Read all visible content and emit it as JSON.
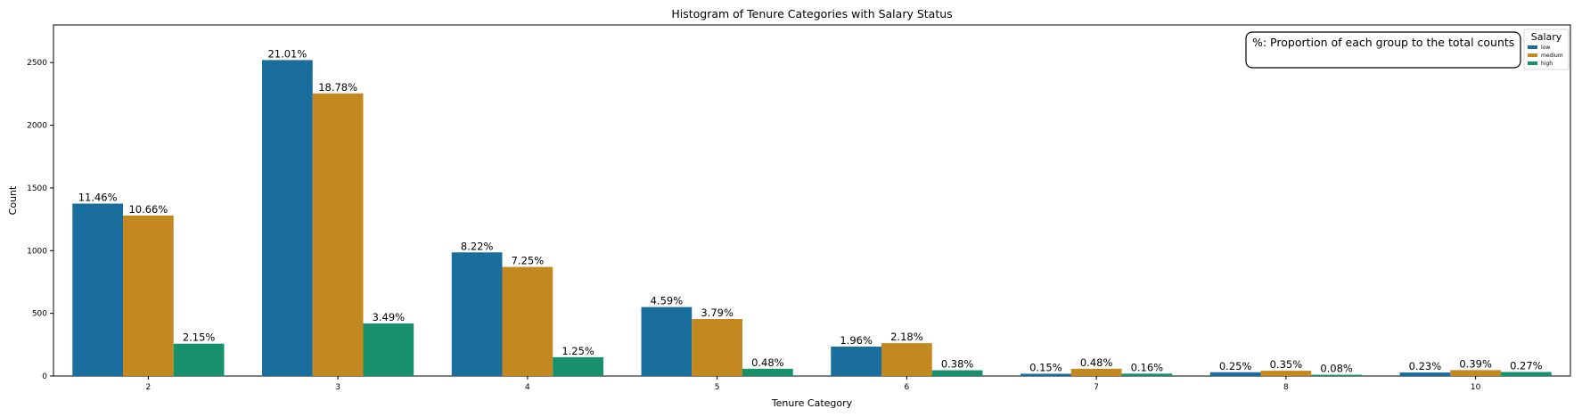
{
  "chart_data": {
    "type": "bar",
    "title": "Histogram of Tenure Categories with Salary Status",
    "xlabel": "Tenure Category",
    "ylabel": "Count",
    "ylim": [
      0,
      2800
    ],
    "yticks": [
      0,
      500,
      1000,
      1500,
      2000,
      2500
    ],
    "categories": [
      "2",
      "3",
      "4",
      "5",
      "6",
      "7",
      "8",
      "10"
    ],
    "series": [
      {
        "name": "low",
        "color": "#1a6e9e",
        "values": [
          1375,
          2520,
          986,
          550,
          235,
          18,
          30,
          28
        ],
        "labels": [
          "11.46%",
          "21.01%",
          "8.22%",
          "4.59%",
          "1.96%",
          "0.15%",
          "0.25%",
          "0.23%"
        ]
      },
      {
        "name": "medium",
        "color": "#c48820",
        "values": [
          1280,
          2254,
          870,
          455,
          262,
          58,
          42,
          47
        ],
        "labels": [
          "10.66%",
          "18.78%",
          "7.25%",
          "3.79%",
          "2.18%",
          "0.48%",
          "0.35%",
          "0.39%"
        ]
      },
      {
        "name": "high",
        "color": "#17906c",
        "values": [
          258,
          419,
          150,
          58,
          46,
          19,
          10,
          32
        ],
        "labels": [
          "2.15%",
          "3.49%",
          "1.25%",
          "0.48%",
          "0.38%",
          "0.16%",
          "0.08%",
          "0.27%"
        ]
      }
    ],
    "annotation": "%: Proportion of each group to the total counts",
    "legend": {
      "title": "Salary",
      "placement": "top-right"
    },
    "grid": false
  }
}
